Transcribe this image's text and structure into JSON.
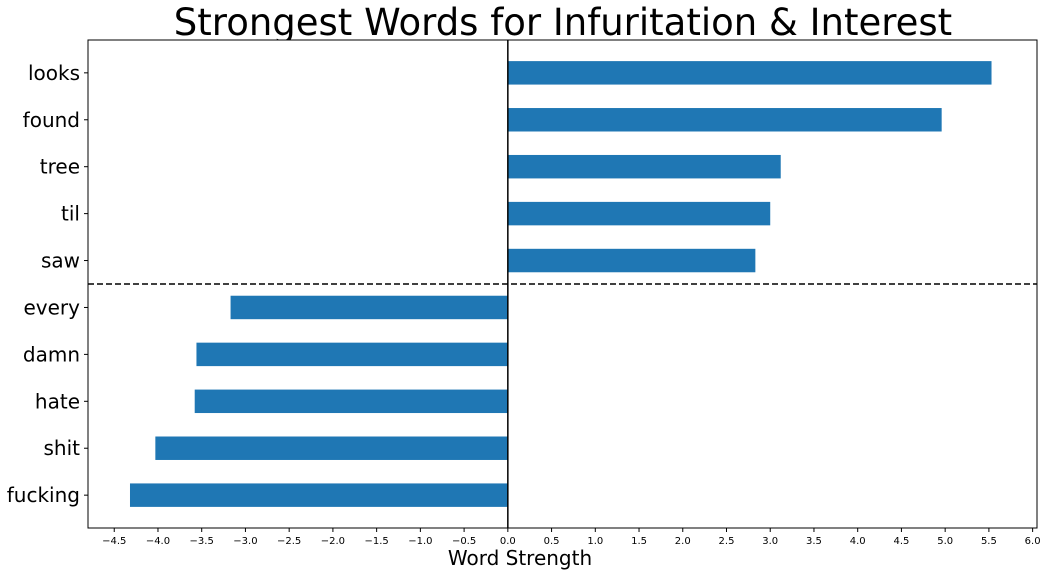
{
  "chart_data": {
    "type": "bar",
    "orientation": "horizontal",
    "title": "Strongest Words for Infuritation & Interest",
    "xlabel": "Word Strength",
    "ylabel": "",
    "categories": [
      "looks",
      "found",
      "tree",
      "til",
      "saw",
      "every",
      "damn",
      "hate",
      "shit",
      "fucking"
    ],
    "values": [
      5.53,
      4.96,
      3.12,
      3.0,
      2.83,
      -3.17,
      -3.56,
      -3.58,
      -4.03,
      -4.32
    ],
    "xlim": [
      -4.8,
      6.05
    ],
    "xticks": [
      -4.5,
      -4.0,
      -3.5,
      -3.0,
      -2.5,
      -2.0,
      -1.5,
      -1.0,
      -0.5,
      0.0,
      0.5,
      1.0,
      1.5,
      2.0,
      2.5,
      3.0,
      3.5,
      4.0,
      4.5,
      5.0,
      5.5,
      6.0
    ],
    "xtick_labels": [
      "−4.5",
      "−4.0",
      "−3.5",
      "−3.0",
      "−2.5",
      "−2.0",
      "−1.5",
      "−1.0",
      "−0.5",
      "0.0",
      "0.5",
      "1.0",
      "1.5",
      "2.0",
      "2.5",
      "3.0",
      "3.5",
      "4.0",
      "4.5",
      "5.0",
      "5.5",
      "6.0"
    ],
    "bar_color": "#1f77b4",
    "grid": false,
    "legend": "none",
    "reference_lines": [
      {
        "orientation": "vertical",
        "at": 0,
        "style": "solid"
      },
      {
        "orientation": "horizontal",
        "between": [
          "saw",
          "every"
        ],
        "style": "dashed"
      }
    ]
  }
}
